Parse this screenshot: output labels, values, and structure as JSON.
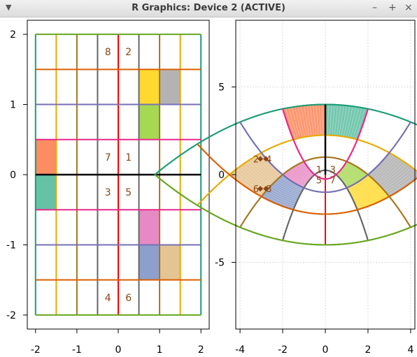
{
  "window": {
    "title": "R Graphics: Device 2 (ACTIVE)",
    "menu_icon": "triangle-down-icon",
    "minimize_label": "–",
    "maximize_label": "+",
    "close_label": "×"
  },
  "colors": {
    "orange": "#FC8D62",
    "teal": "#66C2A5",
    "yellow": "#FFD92F",
    "gray": "#B3B3B3",
    "lime": "#A6D854",
    "pink": "#E78AC3",
    "blue": "#8DA0CB",
    "tan": "#E5C494",
    "label": "#8B4513"
  },
  "chart_data": [
    {
      "type": "line",
      "xlim": [
        -2.2,
        2.2
      ],
      "ylim": [
        -2.2,
        2.2
      ],
      "xticks": [
        -2,
        -1,
        0,
        1,
        2
      ],
      "xtick_labels": [
        "-2",
        "-1",
        "0",
        "1",
        "2"
      ],
      "yticks": [
        -2,
        -1,
        0,
        1,
        2
      ],
      "ytick_labels": [
        "-2",
        "-1",
        "0",
        "1",
        "2"
      ],
      "grid": false,
      "vertical_lines": [
        {
          "x": -2,
          "color": "#1B9E77"
        },
        {
          "x": -1.5,
          "color": "#E6AB02"
        },
        {
          "x": -1,
          "color": "#A6761D"
        },
        {
          "x": -0.5,
          "color": "#666666"
        },
        {
          "x": 0,
          "color": "#FF0000"
        },
        {
          "x": 0.5,
          "color": "#666666"
        },
        {
          "x": 1,
          "color": "#A6761D"
        },
        {
          "x": 1.5,
          "color": "#E6AB02"
        },
        {
          "x": 2,
          "color": "#1B9E77"
        }
      ],
      "horizontal_lines": [
        {
          "y": -2,
          "color": "#66A61E"
        },
        {
          "y": -1.5,
          "color": "#D95F02"
        },
        {
          "y": -1,
          "color": "#7570B3"
        },
        {
          "y": -0.5,
          "color": "#E7298A"
        },
        {
          "y": 0,
          "color": "#000000"
        },
        {
          "y": 0.5,
          "color": "#E7298A"
        },
        {
          "y": 1,
          "color": "#7570B3"
        },
        {
          "y": 1.5,
          "color": "#D95F02"
        },
        {
          "y": 2,
          "color": "#66A61E"
        }
      ],
      "rects": [
        {
          "x0": -2,
          "x1": -1.5,
          "y0": 0,
          "y1": 0.5,
          "fill": "#FC8D62"
        },
        {
          "x0": -2,
          "x1": -1.5,
          "y0": -0.5,
          "y1": 0,
          "fill": "#66C2A5"
        },
        {
          "x0": 0.5,
          "x1": 1,
          "y0": 1,
          "y1": 1.5,
          "fill": "#FFD92F"
        },
        {
          "x0": 1,
          "x1": 1.5,
          "y0": 1,
          "y1": 1.5,
          "fill": "#B3B3B3"
        },
        {
          "x0": 0.5,
          "x1": 1,
          "y0": 0.5,
          "y1": 1,
          "fill": "#A6D854"
        },
        {
          "x0": 0.5,
          "x1": 1,
          "y0": -1,
          "y1": -0.5,
          "fill": "#E78AC3"
        },
        {
          "x0": 0.5,
          "x1": 1,
          "y0": -1.5,
          "y1": -1,
          "fill": "#8DA0CB"
        },
        {
          "x0": 1,
          "x1": 1.5,
          "y0": -1.5,
          "y1": -1,
          "fill": "#E5C494"
        }
      ],
      "labels": [
        {
          "text": "8",
          "x": -0.25,
          "y": 1.75
        },
        {
          "text": "2",
          "x": 0.25,
          "y": 1.75
        },
        {
          "text": "7",
          "x": -0.25,
          "y": 0.25
        },
        {
          "text": "1",
          "x": 0.25,
          "y": 0.25
        },
        {
          "text": "3",
          "x": -0.25,
          "y": -0.25
        },
        {
          "text": "5",
          "x": 0.25,
          "y": -0.25
        },
        {
          "text": "4",
          "x": -0.25,
          "y": -1.75
        },
        {
          "text": "6",
          "x": 0.25,
          "y": -1.75
        }
      ]
    },
    {
      "type": "line",
      "transform": "complex square",
      "xlim": [
        -4.2,
        4.2
      ],
      "ylim": [
        -8.8,
        8.8
      ],
      "xticks": [
        -4,
        -2,
        0,
        2,
        4
      ],
      "xtick_labels": [
        "-4",
        "-2",
        "0",
        "2",
        "4"
      ],
      "yticks": [
        -5,
        0,
        5
      ],
      "ytick_labels": [
        "-5",
        "0",
        "5"
      ],
      "grid": true,
      "labels": [
        {
          "text": "2",
          "x": -3.25,
          "y": 0.9
        },
        {
          "text": "4",
          "x": -2.65,
          "y": 0.9
        },
        {
          "text": "6",
          "x": -3.25,
          "y": -0.8
        },
        {
          "text": "8",
          "x": -2.65,
          "y": -0.8
        },
        {
          "text": "1",
          "x": -0.3,
          "y": 0.3
        },
        {
          "text": "3",
          "x": 0.35,
          "y": 0.3
        },
        {
          "text": "5",
          "x": -0.3,
          "y": -0.3
        },
        {
          "text": "7",
          "x": 0.35,
          "y": -0.3
        }
      ]
    }
  ]
}
